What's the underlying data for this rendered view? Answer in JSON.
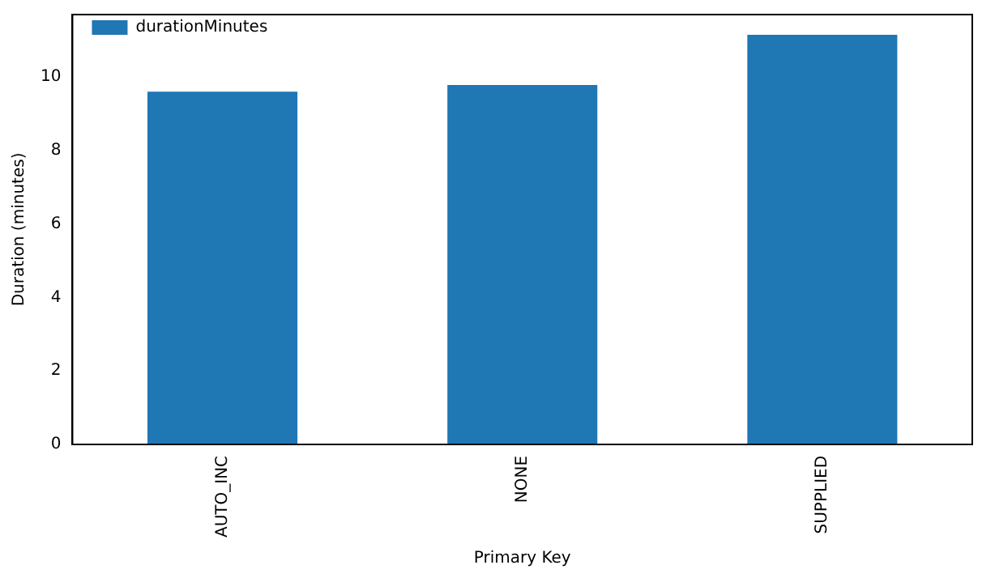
{
  "chart_data": {
    "type": "bar",
    "xlabel": "Primary Key",
    "ylabel": "Duration (minutes)",
    "categories": [
      "AUTO_INC",
      "NONE",
      "SUPPLIED"
    ],
    "series": [
      {
        "name": "durationMinutes",
        "color": "#1f77b4",
        "values": [
          9.6,
          9.78,
          11.15
        ]
      }
    ],
    "ylim": [
      0,
      11.7
    ],
    "yticks": [
      0,
      2,
      4,
      6,
      8,
      10
    ],
    "grid": false,
    "legend": "top left"
  }
}
